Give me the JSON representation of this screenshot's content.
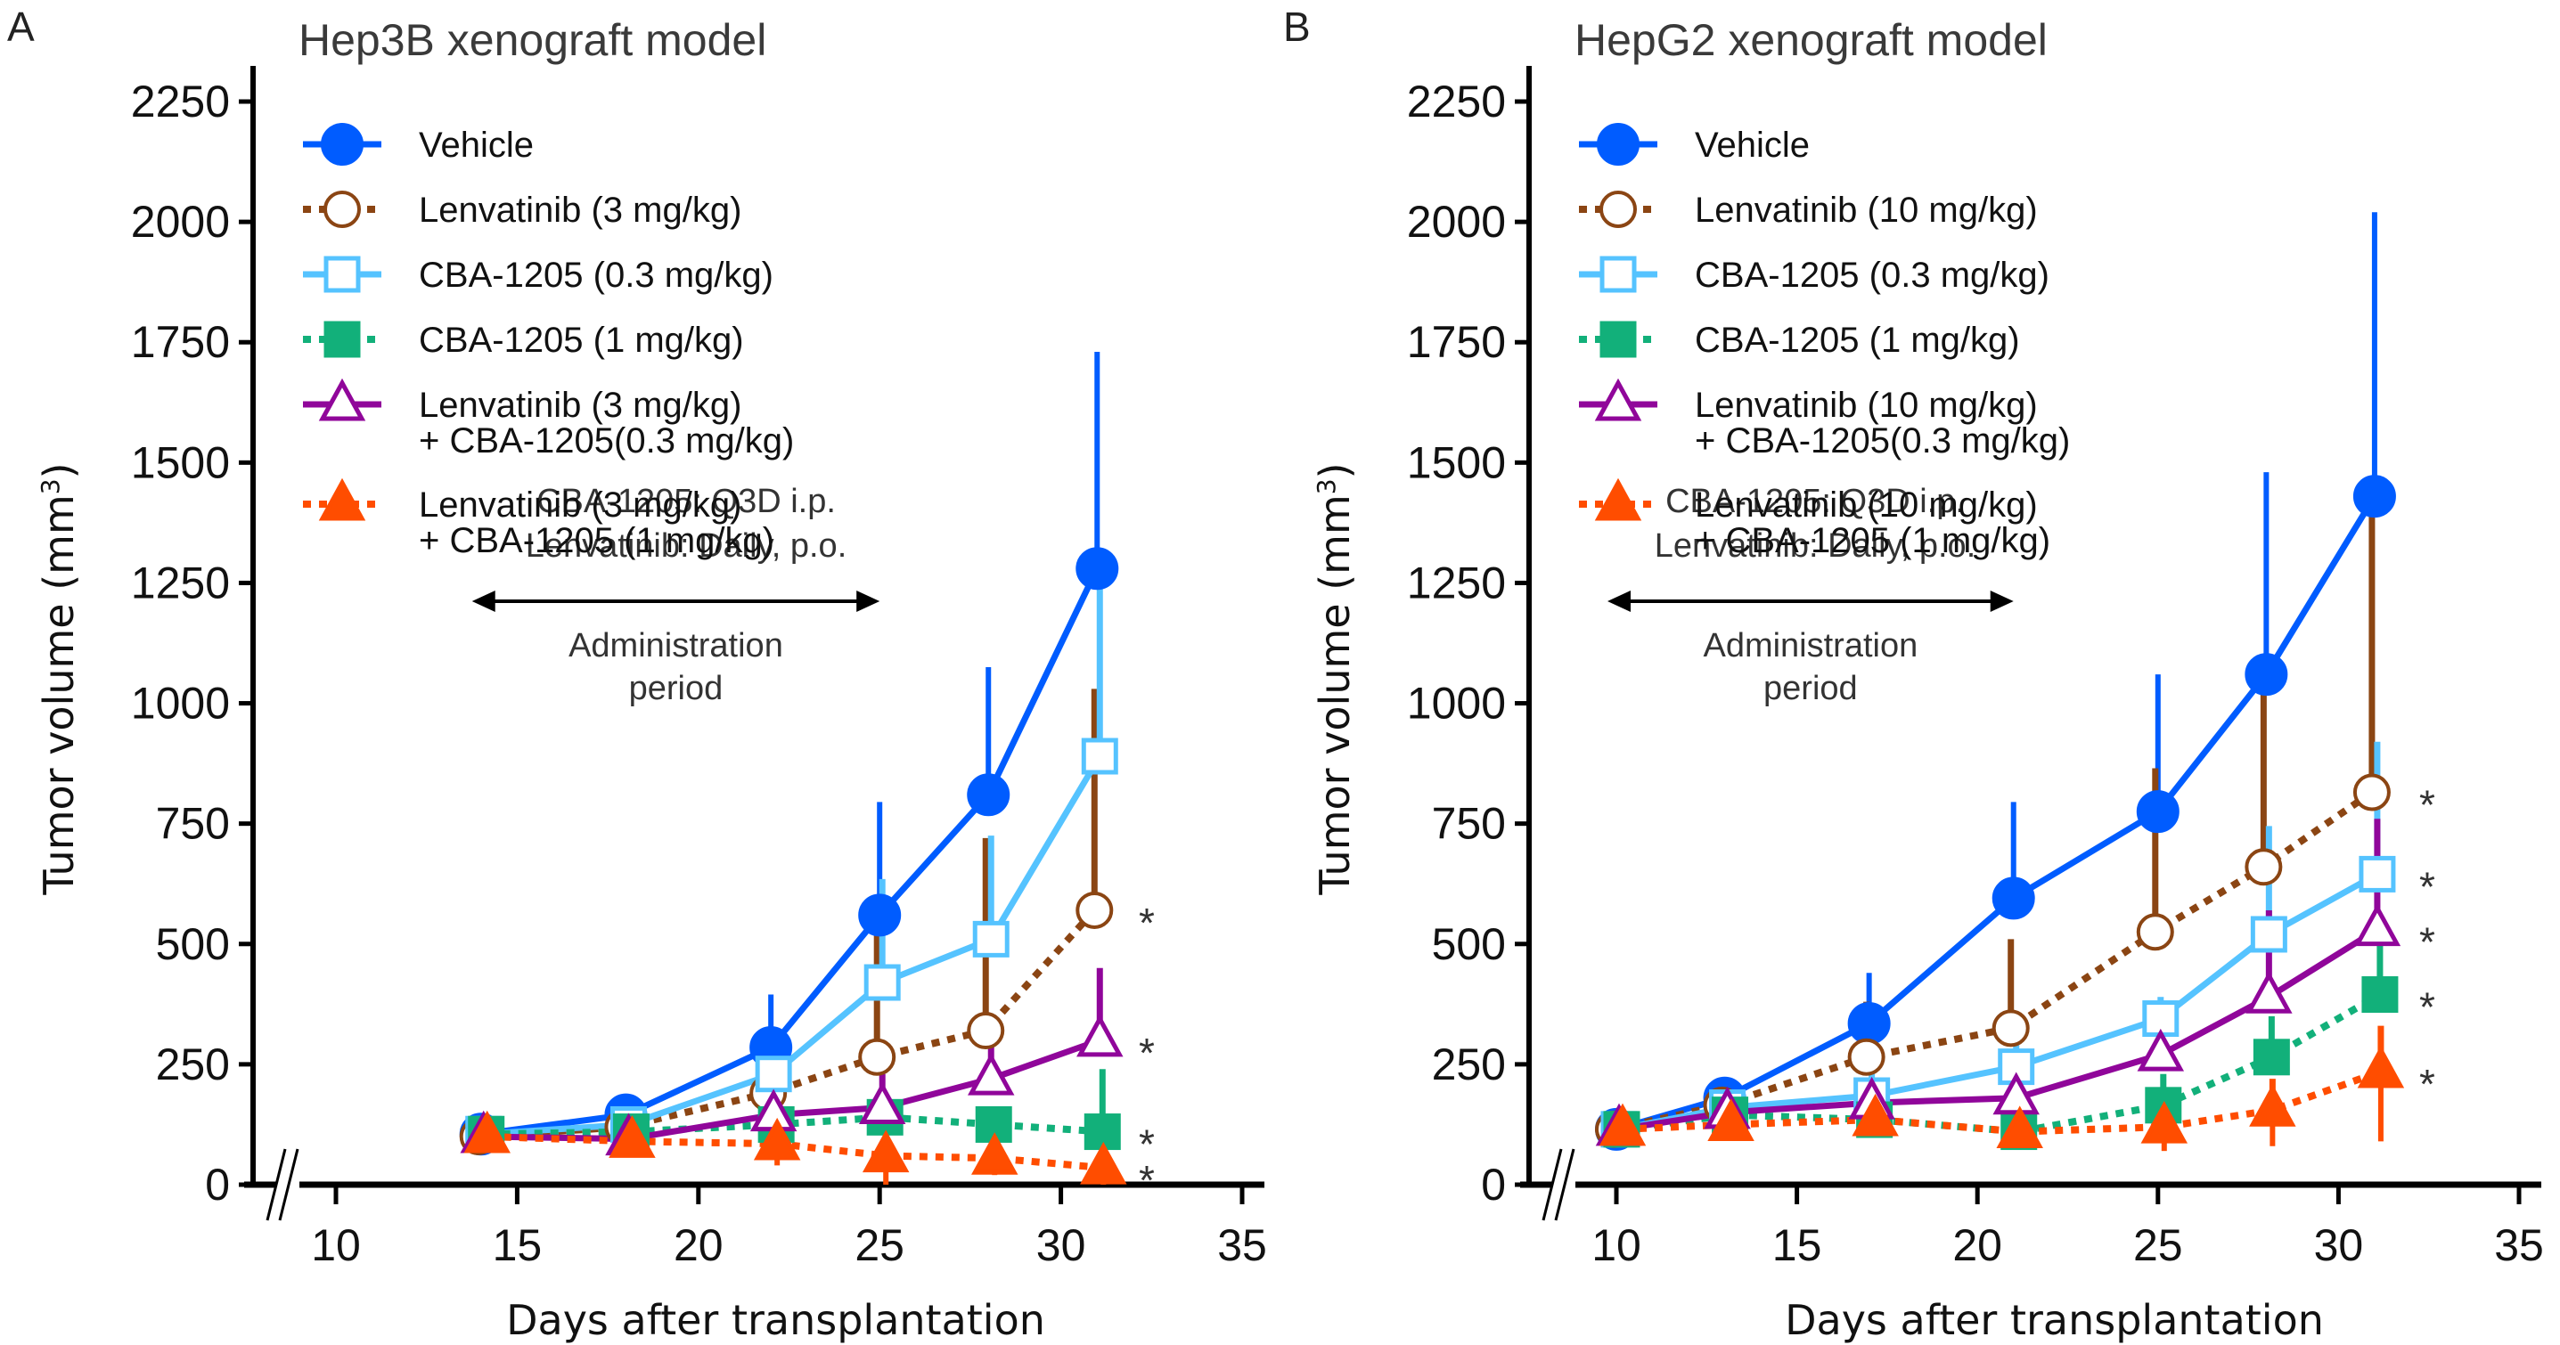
{
  "chart_data": [
    {
      "type": "line",
      "panel_label": "A",
      "title": "Hep3B xenograft model",
      "xlabel": "Days after transplantation",
      "ylabel": "Tumor volume (mm3)",
      "ylabel_main": "Tumor volume (mm",
      "ylabel_sup": "3",
      "ylabel_close": ")",
      "xlim": [
        10,
        35
      ],
      "ylim": [
        0,
        2250
      ],
      "xticks": [
        10,
        15,
        20,
        25,
        30,
        35
      ],
      "yticks": [
        0,
        250,
        500,
        750,
        1000,
        1250,
        1500,
        1750,
        2000,
        2250
      ],
      "axis_break": "x-axis near origin",
      "grid": false,
      "legend_position": "top-left",
      "annotation": {
        "lines": [
          "CBA-1205: Q3D i.p.",
          "Lenvatinib: Daily, p.o."
        ],
        "arrow_from_day": 14,
        "arrow_to_day": 25,
        "arrow_label": [
          "Administration",
          "period"
        ]
      },
      "x": [
        14,
        18,
        22,
        25,
        28,
        31
      ],
      "series": [
        {
          "name": "Vehicle",
          "legend": [
            "Vehicle"
          ],
          "color": "#005cff",
          "marker": "circle-filled",
          "dash": "solid",
          "values": [
            105,
            145,
            285,
            560,
            810,
            1280
          ],
          "err_upper": [
            112,
            168,
            395,
            795,
            1075,
            1730
          ],
          "significant": false
        },
        {
          "name": "Lenvatinib (3 mg/kg)",
          "legend": [
            "Lenvatinib (3 mg/kg)"
          ],
          "color": "#8b4513",
          "marker": "circle-open",
          "dash": "dotted",
          "values": [
            100,
            120,
            190,
            265,
            320,
            570
          ],
          "err_upper": [
            105,
            130,
            230,
            600,
            720,
            1030
          ],
          "significant": true
        },
        {
          "name": "CBA-1205 (0.3 mg/kg)",
          "legend": [
            "CBA-1205 (0.3 mg/kg)"
          ],
          "color": "#55c3ff",
          "marker": "square-open",
          "dash": "solid",
          "values": [
            105,
            125,
            230,
            420,
            510,
            890
          ],
          "err_upper": [
            110,
            140,
            270,
            635,
            725,
            1260
          ],
          "significant": false
        },
        {
          "name": "CBA-1205 (1 mg/kg)",
          "legend": [
            "CBA-1205 (1 mg/kg)"
          ],
          "color": "#12b07a",
          "marker": "square-filled",
          "dash": "dotted",
          "values": [
            105,
            110,
            125,
            140,
            125,
            110
          ],
          "err_upper": [
            110,
            125,
            150,
            170,
            160,
            240
          ],
          "significant": true
        },
        {
          "name": "Lenvatinib (3 mg/kg) + CBA-1205(0.3 mg/kg)",
          "legend": [
            "Lenvatinib (3 mg/kg)",
            "+ CBA-1205(0.3 mg/kg)"
          ],
          "color": "#90069a",
          "marker": "triangle-open",
          "dash": "solid",
          "values": [
            100,
            95,
            145,
            160,
            220,
            300
          ],
          "err_upper": [
            105,
            100,
            165,
            230,
            310,
            450
          ],
          "significant": true
        },
        {
          "name": "Lenvatinib (3 mg/kg) + CBA-1205 (1 mg/kg)",
          "legend": [
            "Lenvatinib (3 mg/kg)",
            "+ CBA-1205 (1 mg/kg)"
          ],
          "color": "#ff4d00",
          "marker": "triangle-filled",
          "dash": "dotted",
          "values": [
            100,
            90,
            85,
            60,
            55,
            35
          ],
          "err_upper": [
            105,
            95,
            100,
            85,
            85,
            60
          ],
          "err_lower": [
            95,
            85,
            40,
            0,
            20,
            0
          ],
          "significant": true
        }
      ]
    },
    {
      "type": "line",
      "panel_label": "B",
      "title": "HepG2 xenograft model",
      "xlabel": "Days after transplantation",
      "ylabel": "Tumor volume (mm3)",
      "ylabel_main": "Tumor volume (mm",
      "ylabel_sup": "3",
      "ylabel_close": ")",
      "xlim": [
        10,
        35
      ],
      "ylim": [
        0,
        2250
      ],
      "xticks": [
        10,
        15,
        20,
        25,
        30,
        35
      ],
      "yticks": [
        0,
        250,
        500,
        750,
        1000,
        1250,
        1500,
        1750,
        2000,
        2250
      ],
      "axis_break": "x-axis near origin",
      "grid": false,
      "legend_position": "top-left",
      "annotation": {
        "lines": [
          "CBA-1205: Q3D i.p.",
          "Lenvatinib: Daily, p.o."
        ],
        "arrow_from_day": 10,
        "arrow_to_day": 21,
        "arrow_label": [
          "Administration",
          "period"
        ]
      },
      "x": [
        10,
        13,
        17,
        21,
        25,
        28,
        31
      ],
      "series": [
        {
          "name": "Vehicle",
          "legend": [
            "Vehicle"
          ],
          "color": "#005cff",
          "marker": "circle-filled",
          "dash": "solid",
          "values": [
            115,
            180,
            335,
            595,
            775,
            1060,
            1430
          ],
          "err_upper": [
            120,
            195,
            440,
            795,
            1060,
            1480,
            2020
          ],
          "significant": false
        },
        {
          "name": "Lenvatinib (10 mg/kg)",
          "legend": [
            "Lenvatinib (10 mg/kg)"
          ],
          "color": "#8b4513",
          "marker": "circle-open",
          "dash": "dotted",
          "values": [
            115,
            165,
            265,
            325,
            525,
            660,
            815
          ],
          "err_upper": [
            120,
            175,
            380,
            510,
            865,
            1095,
            1430
          ],
          "significant": true
        },
        {
          "name": "CBA-1205 (0.3 mg/kg)",
          "legend": [
            "CBA-1205 (0.3 mg/kg)"
          ],
          "color": "#55c3ff",
          "marker": "square-open",
          "dash": "solid",
          "values": [
            115,
            160,
            185,
            245,
            345,
            520,
            645
          ],
          "err_upper": [
            120,
            170,
            230,
            290,
            390,
            745,
            920
          ],
          "significant": true
        },
        {
          "name": "CBA-1205 (1 mg/kg)",
          "legend": [
            "CBA-1205 (1 mg/kg)"
          ],
          "color": "#12b07a",
          "marker": "square-filled",
          "dash": "dotted",
          "values": [
            115,
            145,
            135,
            110,
            165,
            265,
            395
          ],
          "err_upper": [
            120,
            155,
            150,
            120,
            230,
            350,
            500
          ],
          "significant": true
        },
        {
          "name": "Lenvatinib (10 mg/kg) + CBA-1205(0.3 mg/kg)",
          "legend": [
            "Lenvatinib (10 mg/kg)",
            "+ CBA-1205(0.3 mg/kg)"
          ],
          "color": "#90069a",
          "marker": "triangle-open",
          "dash": "solid",
          "values": [
            115,
            150,
            170,
            180,
            270,
            390,
            530
          ],
          "err_upper": [
            120,
            160,
            210,
            220,
            380,
            570,
            760
          ],
          "significant": true
        },
        {
          "name": "Lenvatinib (10 mg/kg) + CBA-1205 (1 mg/kg)",
          "legend": [
            "Lenvatinib (10 mg/kg)",
            "+ CBA-1205 (1 mg/kg)"
          ],
          "color": "#ff4d00",
          "marker": "triangle-filled",
          "dash": "dotted",
          "values": [
            115,
            125,
            135,
            110,
            120,
            155,
            235
          ],
          "err_upper": [
            120,
            135,
            150,
            120,
            140,
            220,
            330
          ],
          "err_lower": [
            110,
            115,
            120,
            95,
            70,
            80,
            90
          ],
          "significant": true
        }
      ]
    }
  ],
  "significance_marker": "*"
}
